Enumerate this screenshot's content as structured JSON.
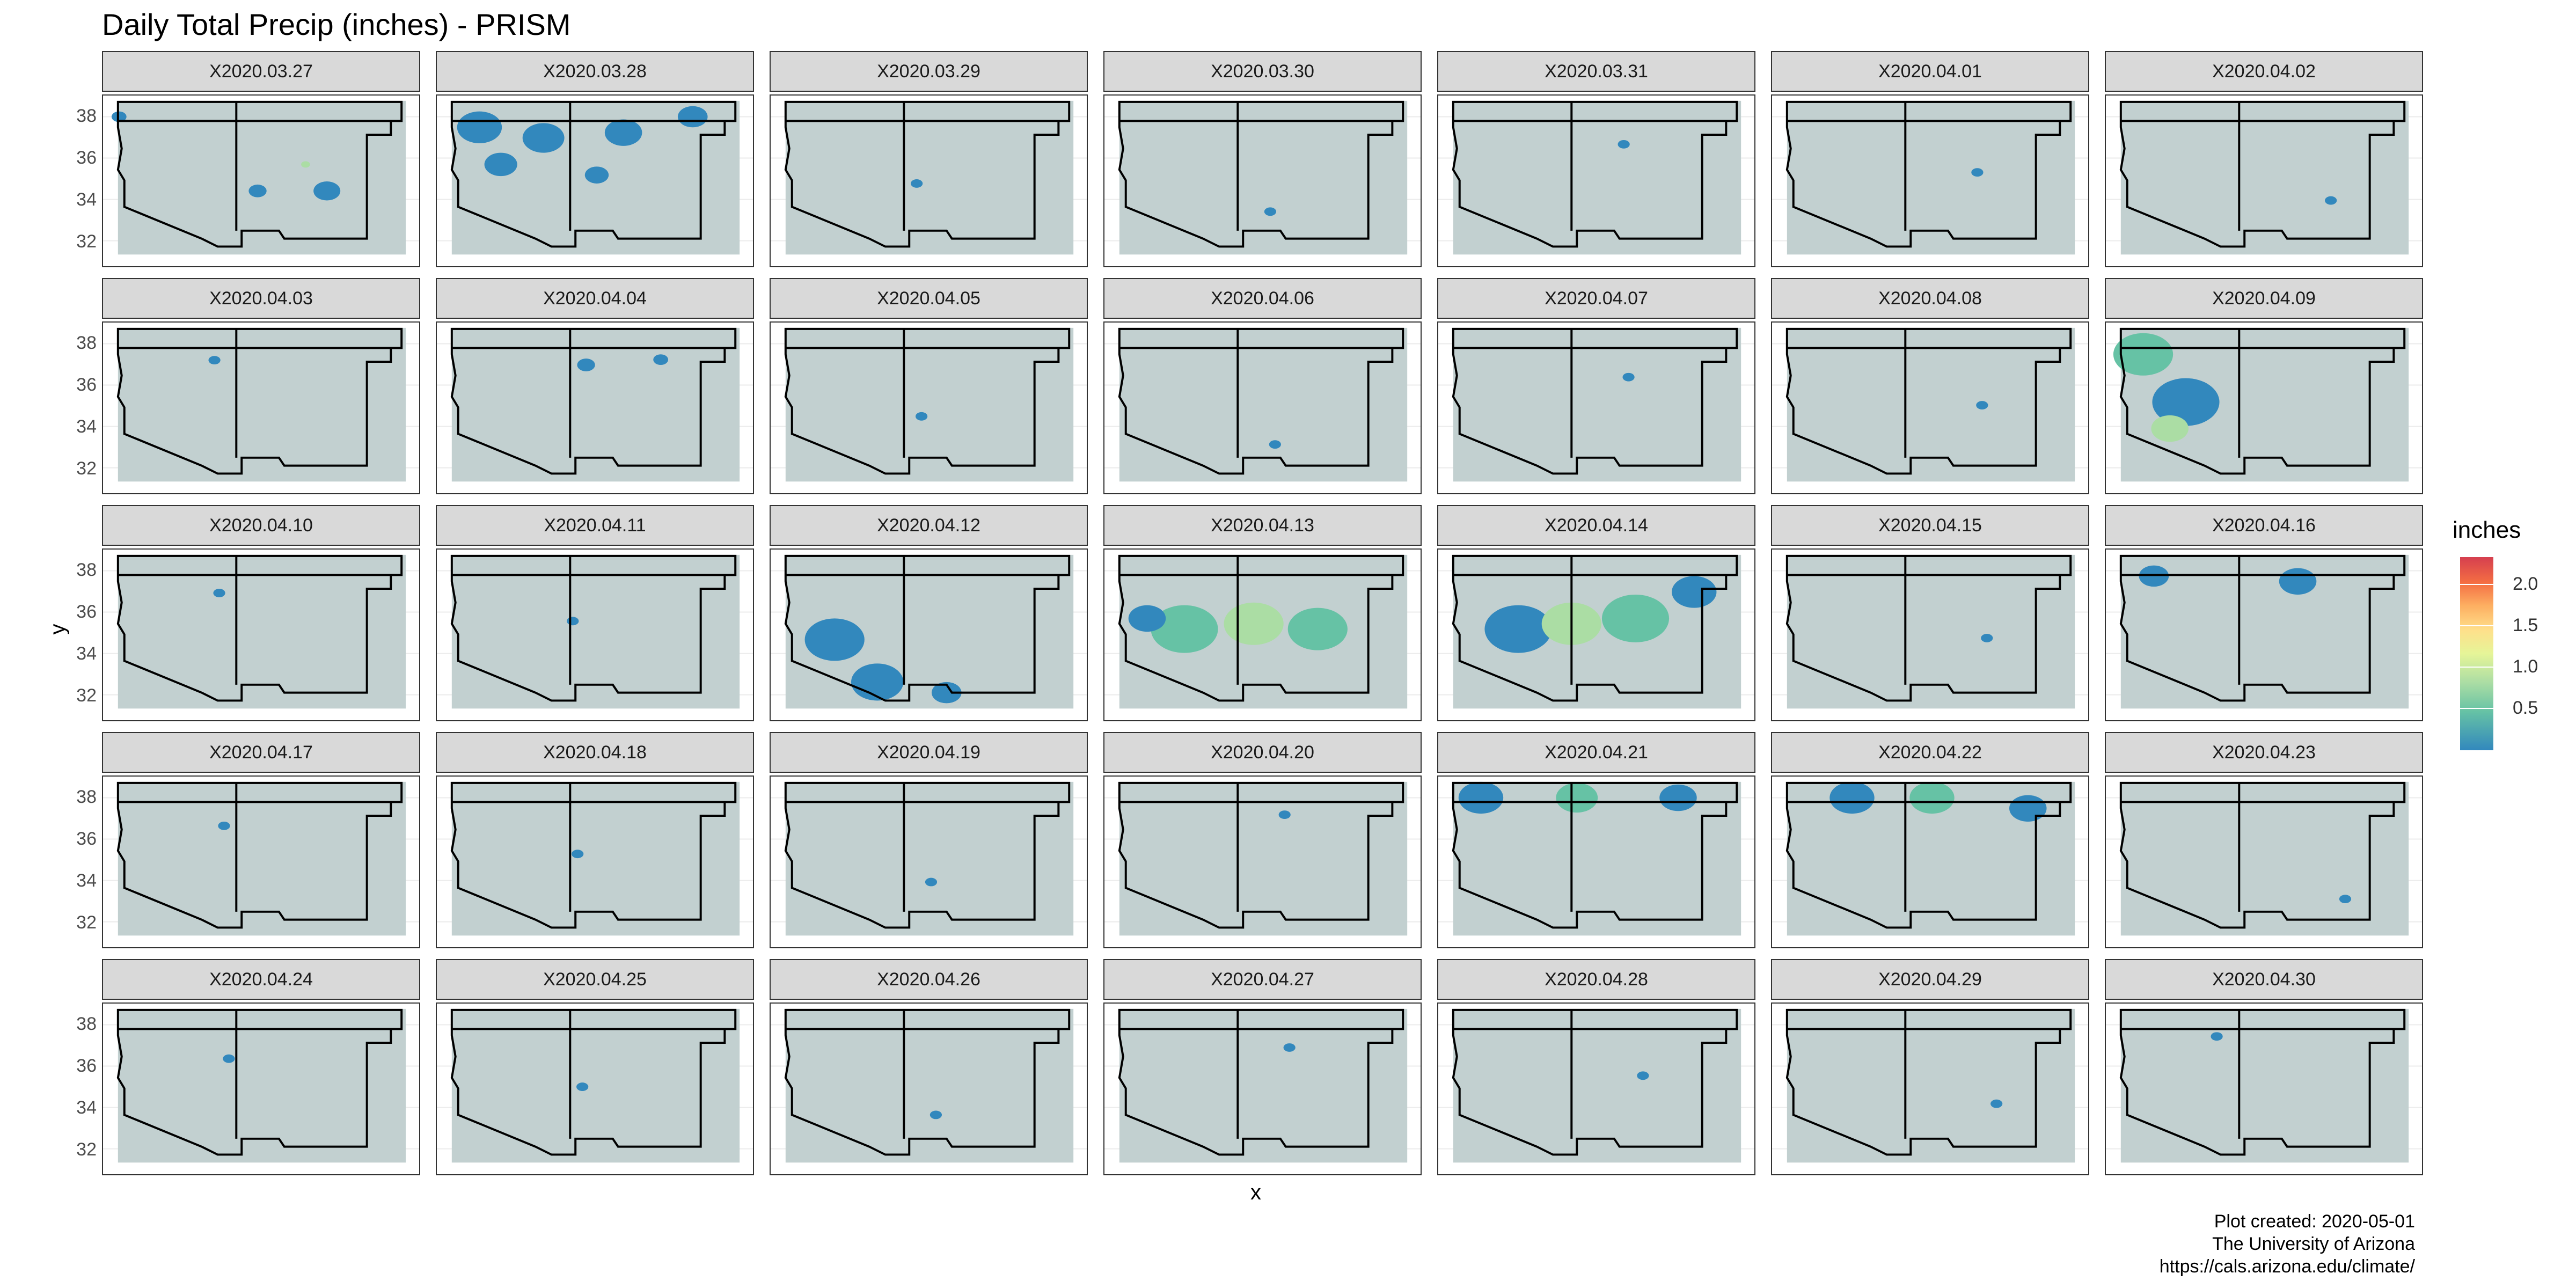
{
  "title": "Daily Total Precip (inches) - PRISM",
  "axes": {
    "xlabel": "x",
    "ylabel": "y",
    "y_ticks": [
      "38",
      "36",
      "34",
      "32"
    ]
  },
  "legend": {
    "title": "inches",
    "ticks": [
      "2.0",
      "1.5",
      "1.0",
      "0.5"
    ]
  },
  "caption": [
    "Plot created: 2020-05-01",
    "The University of Arizona",
    "https://cals.arizona.edu/climate/"
  ],
  "panels": [
    "X2020.03.27",
    "X2020.03.28",
    "X2020.03.29",
    "X2020.03.30",
    "X2020.03.31",
    "X2020.04.01",
    "X2020.04.02",
    "X2020.04.03",
    "X2020.04.04",
    "X2020.04.05",
    "X2020.04.06",
    "X2020.04.07",
    "X2020.04.08",
    "X2020.04.09",
    "X2020.04.10",
    "X2020.04.11",
    "X2020.04.12",
    "X2020.04.13",
    "X2020.04.14",
    "X2020.04.15",
    "X2020.04.16",
    "X2020.04.17",
    "X2020.04.18",
    "X2020.04.19",
    "X2020.04.20",
    "X2020.04.21",
    "X2020.04.22",
    "X2020.04.23",
    "X2020.04.24",
    "X2020.04.25",
    "X2020.04.26",
    "X2020.04.27",
    "X2020.04.28",
    "X2020.04.29",
    "X2020.04.30"
  ],
  "colors": {
    "land": "#c2d0d0",
    "border": "#000000",
    "scale": [
      "#3288bd",
      "#66c2a5",
      "#abdda4",
      "#e6f598",
      "#fee08b",
      "#fdae61",
      "#f46d43",
      "#d53e4f"
    ]
  }
}
